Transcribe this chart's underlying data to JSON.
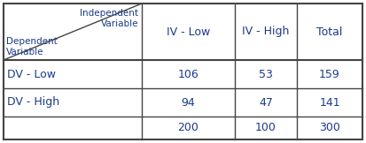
{
  "col_headers": [
    "IV - Low",
    "IV - High",
    "Total"
  ],
  "row_headers": [
    "DV - Low",
    "DV - High",
    ""
  ],
  "cell_data": [
    [
      "106",
      "53",
      "159"
    ],
    [
      "94",
      "47",
      "141"
    ],
    [
      "200",
      "100",
      "300"
    ]
  ],
  "independent_label_1": "Independent",
  "independent_label_2": "Variable",
  "dependent_label_1": "Dependent",
  "dependent_label_2": "Variable",
  "text_color": "#1a3a8a",
  "border_color": "#444444",
  "bg_color": "#ffffff",
  "figsize": [
    4.13,
    1.62
  ],
  "dpi": 100
}
